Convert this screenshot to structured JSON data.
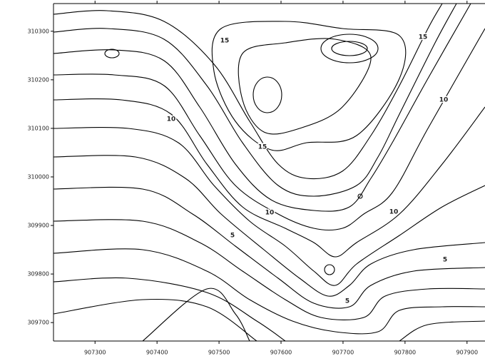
{
  "chart_data": {
    "type": "contour",
    "xlim": [
      907233,
      907929
    ],
    "xticks": [
      907300,
      907400,
      907500,
      907600,
      907700,
      907800,
      907900
    ],
    "ylim": [
      309662,
      310357
    ],
    "yticks": [
      310300,
      310200,
      310100,
      310000,
      309900,
      309800,
      309700
    ],
    "contour_labels": [
      "15",
      "15",
      "10",
      "10",
      "15",
      "10",
      "10",
      "5",
      "5",
      "5"
    ],
    "color": "#000000"
  }
}
